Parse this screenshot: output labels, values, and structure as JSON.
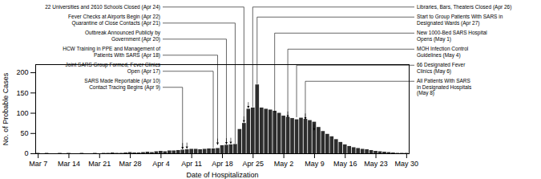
{
  "chart_data": {
    "type": "bar",
    "xlabel": "Date of Hospitalization",
    "ylabel": "No. of Probable Cases",
    "color": "#2d2d2d",
    "grid": false,
    "ylim": [
      0,
      220
    ],
    "yticks": [
      0,
      50,
      100,
      150,
      200
    ],
    "categories": [
      "Mar 7",
      null,
      null,
      null,
      null,
      null,
      null,
      "Mar 14",
      null,
      null,
      null,
      null,
      null,
      null,
      "Mar 21",
      null,
      null,
      null,
      null,
      null,
      null,
      "Mar 28",
      null,
      null,
      null,
      null,
      null,
      null,
      "Apr 4",
      null,
      null,
      null,
      null,
      null,
      null,
      "Apr 11",
      null,
      null,
      null,
      null,
      null,
      null,
      "Apr 18",
      null,
      null,
      null,
      null,
      null,
      null,
      "Apr 25",
      null,
      null,
      null,
      null,
      null,
      null,
      "May 2",
      null,
      null,
      null,
      null,
      null,
      null,
      "May 9",
      null,
      null,
      null,
      null,
      null,
      null,
      "May 16",
      null,
      null,
      null,
      null,
      null,
      null,
      "May 23",
      null,
      null,
      null,
      null,
      null,
      null,
      "May 30"
    ],
    "values": [
      1,
      0,
      1,
      0,
      0,
      1,
      0,
      1,
      0,
      0,
      1,
      0,
      0,
      1,
      0,
      1,
      1,
      2,
      1,
      1,
      2,
      3,
      2,
      2,
      3,
      4,
      3,
      5,
      6,
      5,
      7,
      7,
      8,
      9,
      10,
      11,
      11,
      10,
      11,
      12,
      12,
      13,
      20,
      21,
      22,
      23,
      60,
      75,
      110,
      113,
      170,
      113,
      110,
      108,
      105,
      100,
      93,
      90,
      87,
      84,
      88,
      85,
      82,
      78,
      65,
      55,
      48,
      42,
      35,
      28,
      22,
      18,
      15,
      13,
      11,
      10,
      8,
      6,
      5,
      4,
      3,
      2,
      1,
      1,
      1
    ],
    "annotations": [
      {
        "text": "22 Universities and 2610 Schools Closed (Apr 24)",
        "x": 47,
        "y": 76
      },
      {
        "text": "Fever Checks at Airports Begin (Apr 22)\nQuarantine of Close Contacts (Apr 21)",
        "x": 45,
        "y": 24
      },
      {
        "text": "Outbreak Announced Publicly by\nGovernment (Apr 20)",
        "x": 43,
        "y": 22
      },
      {
        "text": "HCW Training in PPE and Management of\nPatients With SARS (Apr 18)",
        "x": 41,
        "y": 21
      },
      {
        "text": "Joint SARS Group Formed, Fever Clinics\nOpen (Apr 17)",
        "x": 40,
        "y": 13
      },
      {
        "text": "SARS Made Reportable (Apr 10)\nContact Tracing Begins (Apr 9)",
        "x": 33,
        "y": 10
      },
      {
        "text": "Libraries, Bars, Theaters Closed (Apr 26)",
        "x": 49,
        "y": 114
      },
      {
        "text": "Start to Group Patients With SARS in\nDesignated Wards (Apr 27)",
        "x": 50,
        "y": 171
      },
      {
        "text": "New 1000-Bed SARS Hospital\nOpens (May 1)",
        "x": 54,
        "y": 101
      },
      {
        "text": "MOH Infection Control\nGuidelines (May 4)",
        "x": 57,
        "y": 88
      },
      {
        "text": "66 Designated Fever\nClinics (May 6)",
        "x": 59,
        "y": 89
      },
      {
        "text": "All Patients With SARS\nin Designated Hospitals\n(May 8)",
        "x": 61,
        "y": 83
      }
    ],
    "event_arrows": [
      {
        "x": 33,
        "y": 10
      },
      {
        "x": 34,
        "y": 11
      },
      {
        "x": 41,
        "y": 21
      },
      {
        "x": 43,
        "y": 22
      },
      {
        "x": 44,
        "y": 23
      },
      {
        "x": 47,
        "y": 76
      },
      {
        "x": 48,
        "y": 111
      },
      {
        "x": 57,
        "y": 88
      },
      {
        "x": 61,
        "y": 83
      },
      {
        "x": 63,
        "y": 56
      }
    ]
  }
}
